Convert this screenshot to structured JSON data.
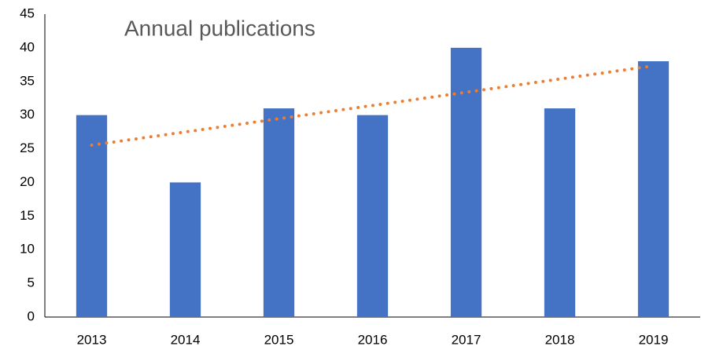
{
  "chart_data": {
    "type": "bar",
    "title": "Annual publications",
    "categories": [
      "2013",
      "2014",
      "2015",
      "2016",
      "2017",
      "2018",
      "2019"
    ],
    "values": [
      30,
      20,
      31,
      30,
      40,
      31,
      38
    ],
    "color": "#4472c4",
    "ylim": [
      0,
      45
    ],
    "yticks": [
      0,
      5,
      10,
      15,
      20,
      25,
      30,
      35,
      40,
      45
    ],
    "grid": false,
    "trendline": {
      "type": "linear",
      "color": "#ed7d31"
    }
  }
}
